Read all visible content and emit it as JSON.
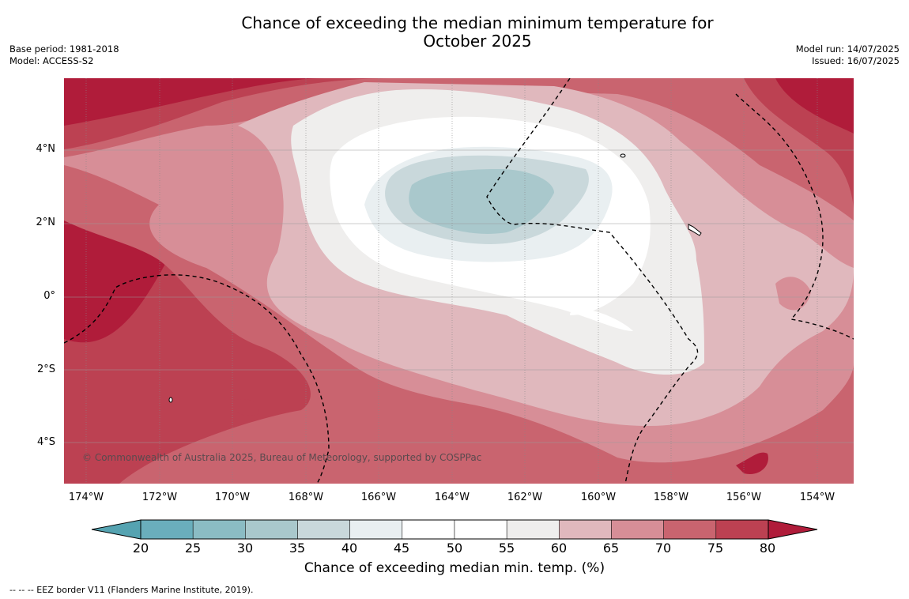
{
  "title": {
    "line1": "Chance of exceeding the median minimum temperature for",
    "line2": "October 2025"
  },
  "meta_left": {
    "base_period": "Base period: 1981-2018",
    "model": "Model: ACCESS-S2"
  },
  "meta_right": {
    "model_run": "Model run: 14/07/2025",
    "issued": "Issued: 16/07/2025"
  },
  "map": {
    "copyright": "© Commonwealth of Australia 2025, Bureau of Meteorology, supported by COSPPac",
    "lat_labels": [
      "4°N",
      "2°N",
      "0°",
      "2°S",
      "4°S"
    ],
    "lon_labels": [
      "174°W",
      "172°W",
      "170°W",
      "168°W",
      "166°W",
      "164°W",
      "162°W",
      "160°W",
      "158°W",
      "156°W",
      "154°W"
    ]
  },
  "colorbar": {
    "ticks": [
      "20",
      "25",
      "30",
      "35",
      "40",
      "45",
      "50",
      "55",
      "60",
      "65",
      "70",
      "75",
      "80"
    ],
    "colors": [
      "#55a3b1",
      "#6aaebc",
      "#8bbcc4",
      "#a9c8cc",
      "#c9d8db",
      "#e9eff1",
      "#ffffff",
      "#ffffff",
      "#efeeed",
      "#e0b8bd",
      "#d78e97",
      "#c9646f",
      "#bc4152",
      "#b01c3a"
    ],
    "label": "Chance of exceeding median min. temp. (%)"
  },
  "footer": {
    "legend_text": "--  --  -- EEZ border V11 (Flanders Marine Institute, 2019)."
  }
}
